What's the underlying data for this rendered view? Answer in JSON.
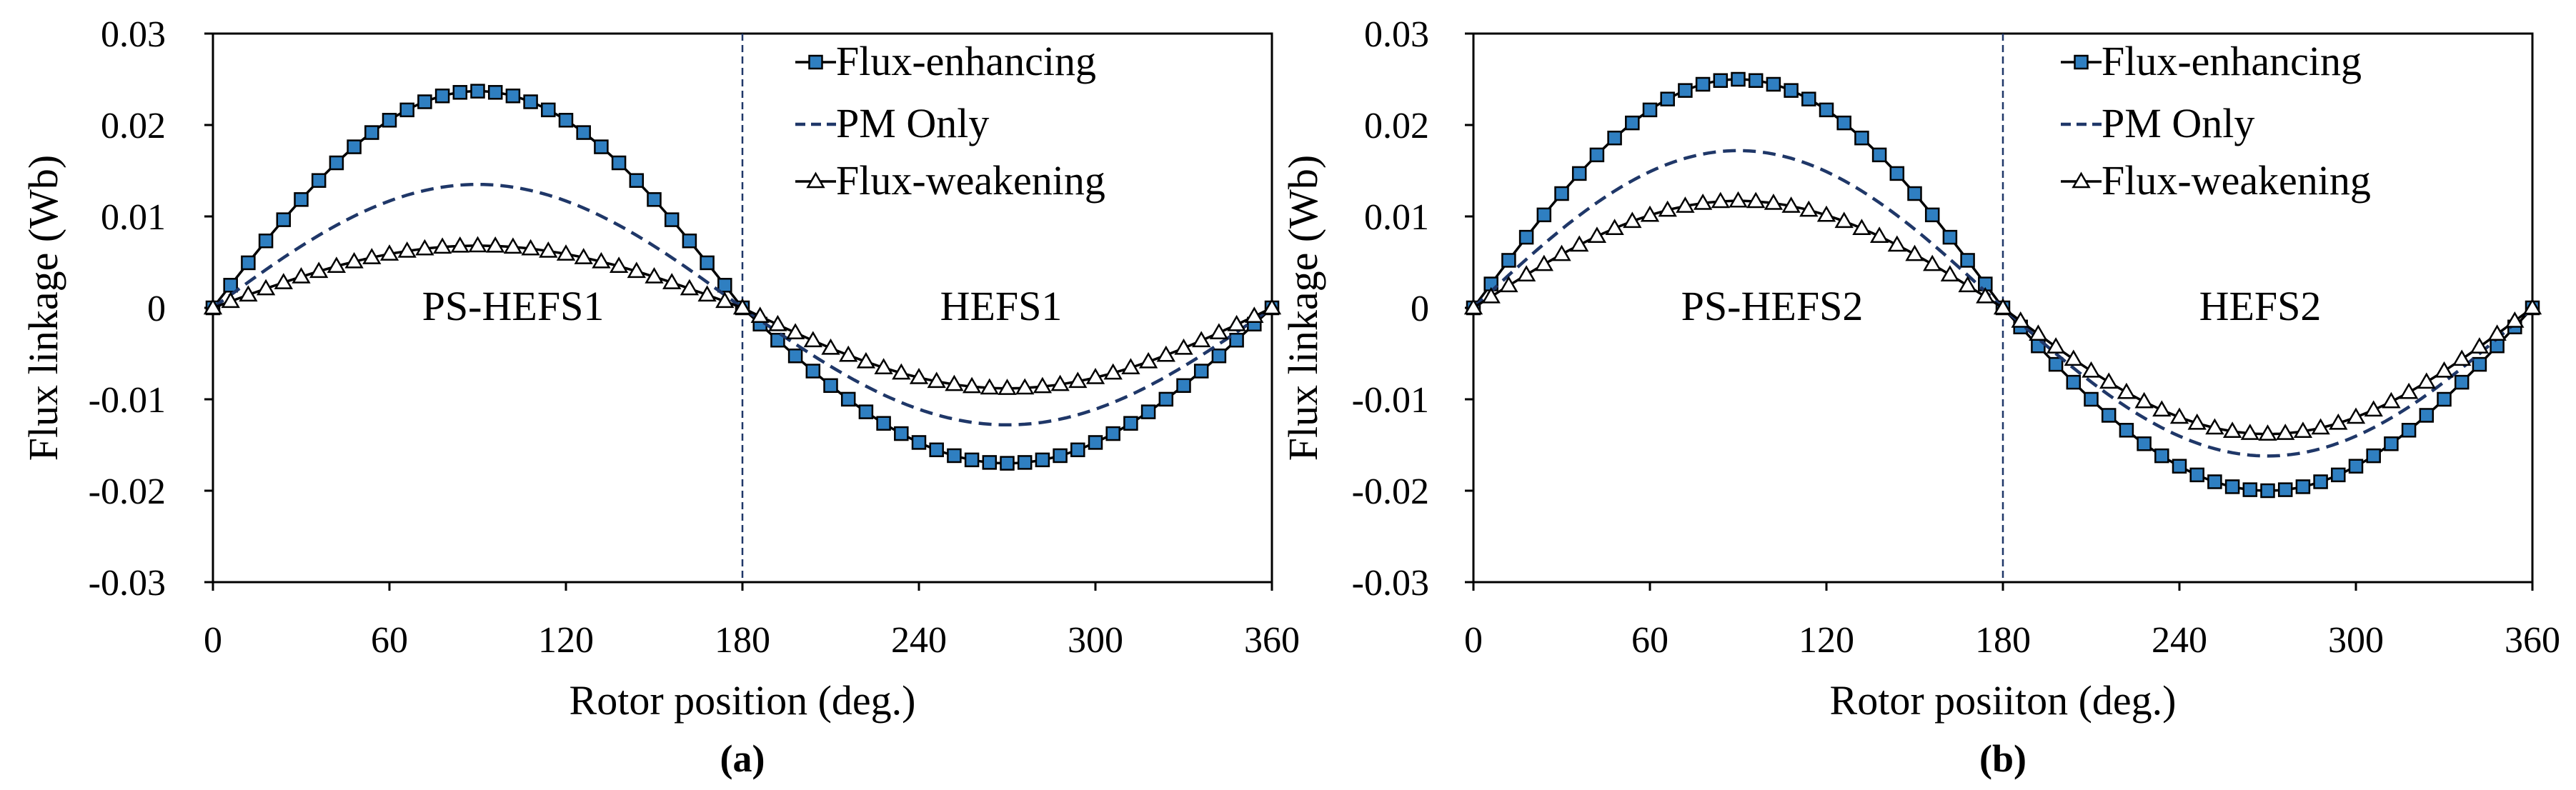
{
  "chart_data": [
    {
      "type": "line",
      "panel_label": "(a)",
      "xlabel": "Rotor position (deg.)",
      "ylabel": "Flux linkage (Wb)",
      "xlim": [
        0,
        360
      ],
      "ylim": [
        -0.03,
        0.03
      ],
      "x_ticks": [
        0,
        60,
        120,
        180,
        240,
        300,
        360
      ],
      "y_ticks": [
        0.03,
        0.02,
        0.01,
        0,
        -0.01,
        -0.02,
        -0.03
      ],
      "y_tick_labels": [
        "0.03",
        "0.02",
        "0.01",
        "0",
        "-0.01",
        "-0.02",
        "-0.03"
      ],
      "x_tick_labels": [
        "0",
        "60",
        "120",
        "180",
        "240",
        "300",
        "360"
      ],
      "divider_x": 180,
      "region_labels": [
        "PS-HEFS1",
        "HEFS1"
      ],
      "legend_position": "top-right",
      "series": [
        {
          "name": "Flux-enhancing",
          "style": "solid-square",
          "peak_pos": 0.0237,
          "peak_neg": -0.017
        },
        {
          "name": "PM Only",
          "style": "dashed",
          "peak_pos": 0.0135,
          "peak_neg": -0.0128
        },
        {
          "name": "Flux-weakening",
          "style": "solid-triangle",
          "peak_pos": 0.0068,
          "peak_neg": -0.0088
        }
      ]
    },
    {
      "type": "line",
      "panel_label": "(b)",
      "xlabel": "Rotor posiiton (deg.)",
      "ylabel": "Flux linkage (Wb)",
      "xlim": [
        0,
        360
      ],
      "ylim": [
        -0.03,
        0.03
      ],
      "x_ticks": [
        0,
        60,
        120,
        180,
        240,
        300,
        360
      ],
      "y_ticks": [
        0.03,
        0.02,
        0.01,
        0,
        -0.01,
        -0.02,
        -0.03
      ],
      "y_tick_labels": [
        "0.03",
        "0.02",
        "0.01",
        "0",
        "-0.01",
        "-0.02",
        "-0.03"
      ],
      "x_tick_labels": [
        "0",
        "60",
        "120",
        "180",
        "240",
        "300",
        "360"
      ],
      "divider_x": 180,
      "region_labels": [
        "PS-HEFS2",
        "HEFS2"
      ],
      "legend_position": "top-right",
      "series": [
        {
          "name": "Flux-enhancing",
          "style": "solid-square",
          "peak_pos": 0.025,
          "peak_neg": -0.02
        },
        {
          "name": "PM Only",
          "style": "dashed",
          "peak_pos": 0.0172,
          "peak_neg": -0.0162
        },
        {
          "name": "Flux-weakening",
          "style": "solid-triangle",
          "peak_pos": 0.0117,
          "peak_neg": -0.0138
        }
      ]
    }
  ],
  "colors": {
    "marker_fill": "#2f7fc1",
    "dashed_line": "#1f3768",
    "line": "#000000",
    "divider": "#1f3768"
  }
}
